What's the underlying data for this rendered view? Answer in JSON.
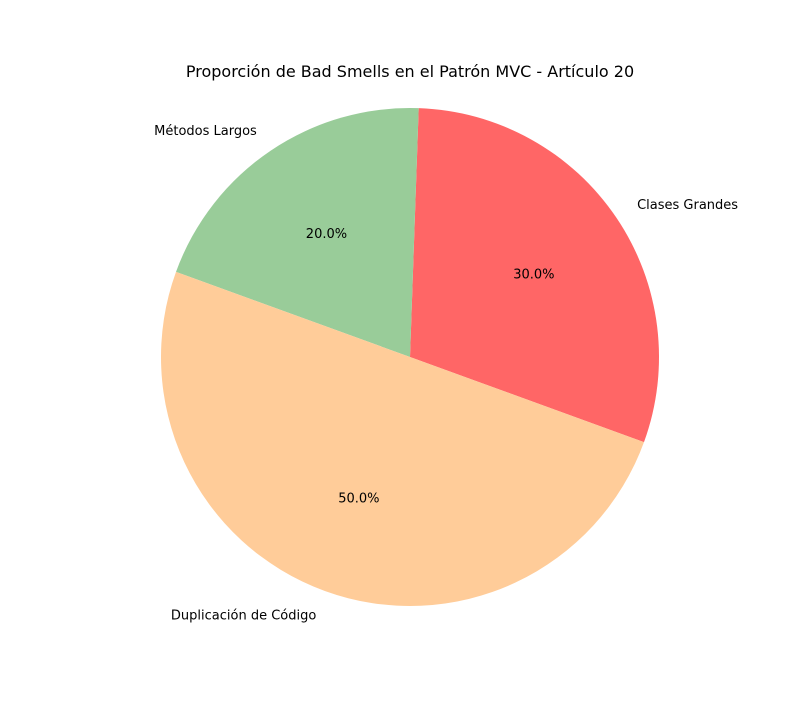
{
  "chart_data": {
    "type": "pie",
    "title": "Proporción de Bad Smells en el Patrón MVC - Artículo 20",
    "categories": [
      "Clases Grandes",
      "Métodos Largos",
      "Duplicación de Código"
    ],
    "values": [
      30,
      20,
      50
    ],
    "percent_labels": [
      "30.0%",
      "20.0%",
      "50.0%"
    ],
    "colors": [
      "#ff6666",
      "#99cc99",
      "#ffcc99"
    ],
    "start_angle_deg": -20,
    "direction": "counterclockwise"
  }
}
